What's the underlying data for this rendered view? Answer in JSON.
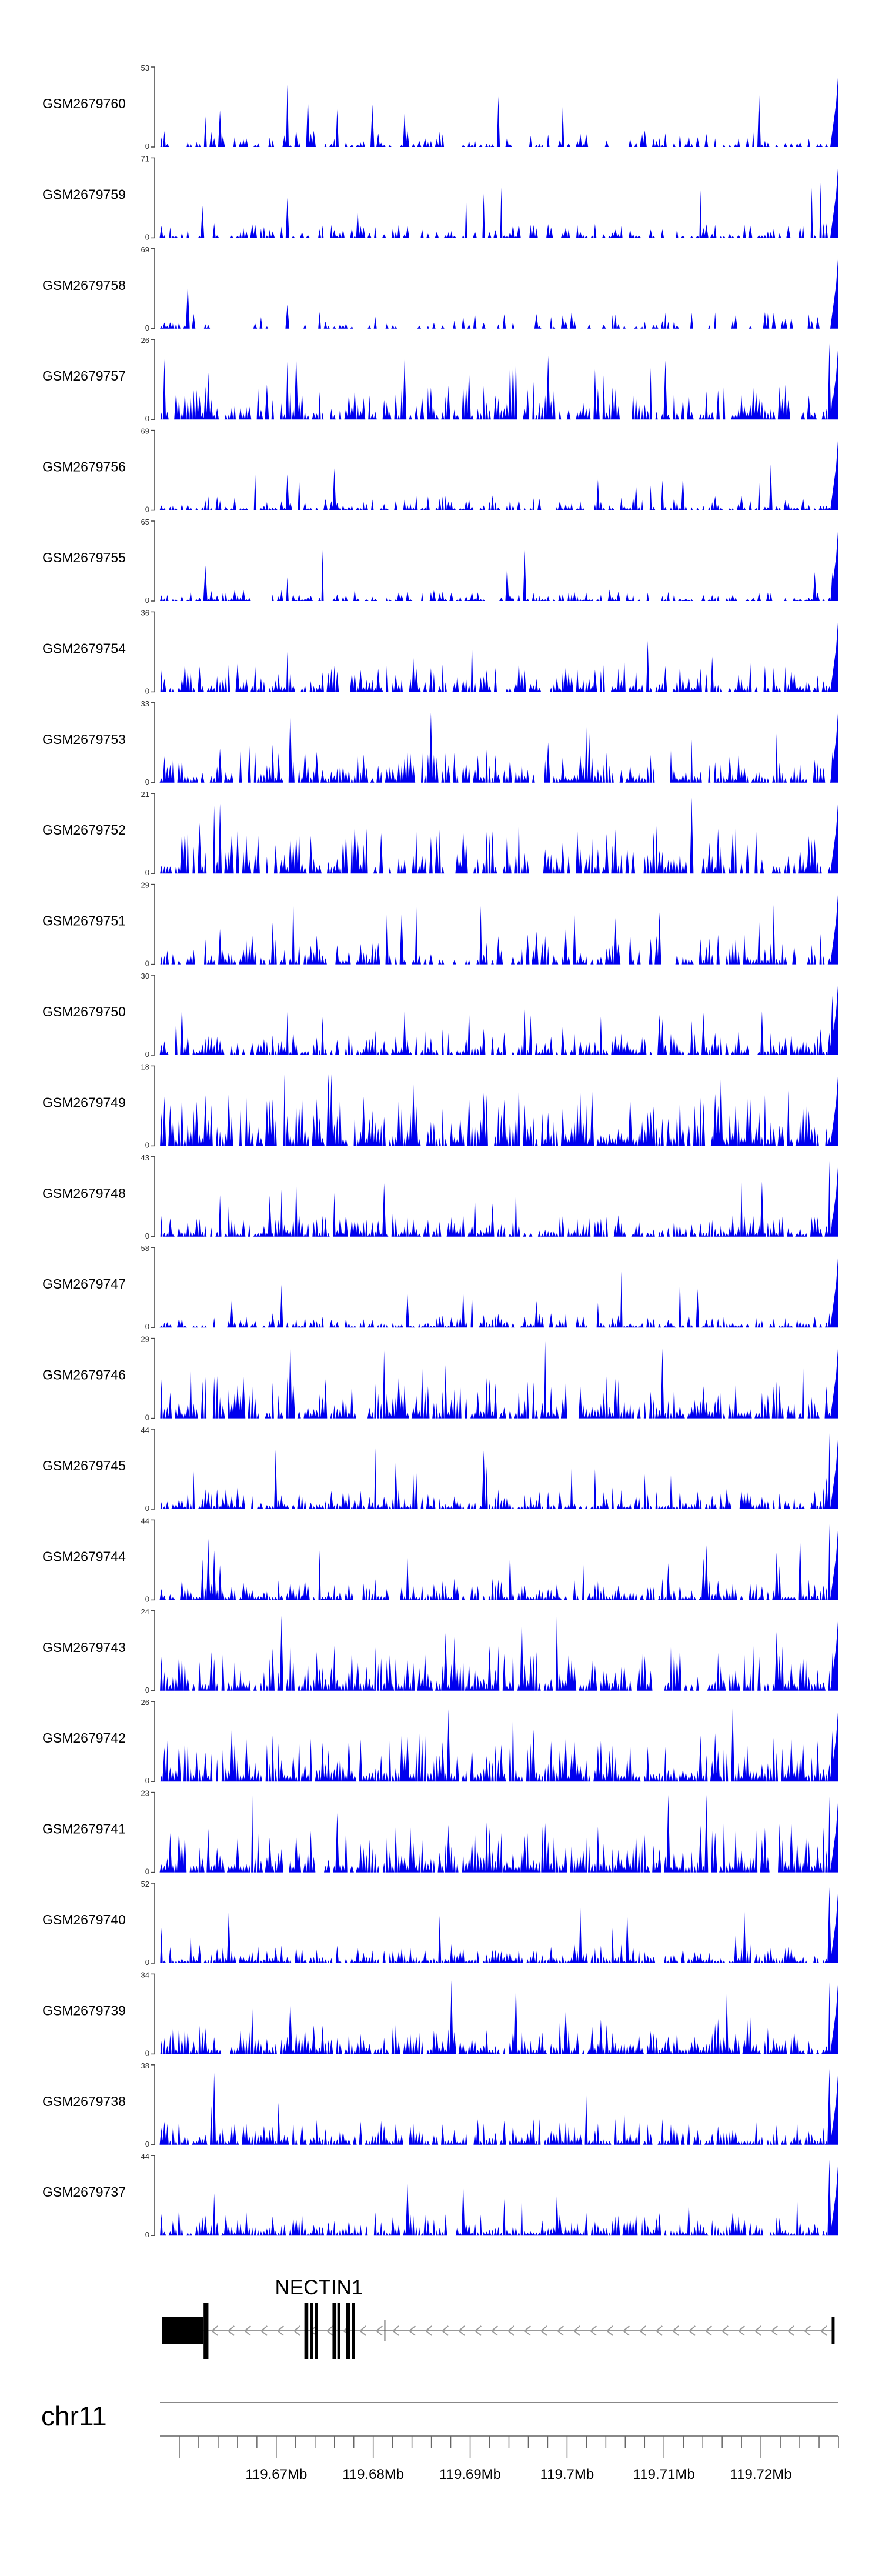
{
  "colors": {
    "signal": "#0000ee",
    "axis": "#444444",
    "gene": "#000000",
    "intron": "#999999"
  },
  "chart_data": {
    "type": "area",
    "chromosome": "chr11",
    "xlim": [
      119658000,
      119728000
    ],
    "x_ticks": [
      {
        "value": 119670000,
        "label": "119.67Mb"
      },
      {
        "value": 119680000,
        "label": "119.68Mb"
      },
      {
        "value": 119690000,
        "label": "119.69Mb"
      },
      {
        "value": 119700000,
        "label": "119.7Mb"
      },
      {
        "value": 119710000,
        "label": "119.71Mb"
      },
      {
        "value": 119720000,
        "label": "119.72Mb"
      }
    ],
    "tracks": [
      {
        "name": "GSM2679760",
        "ymax": "53",
        "ymin": "0",
        "seed": 7601,
        "density": 0.45,
        "base": 0.14,
        "spikes": [
          [
            0.185,
            0.78
          ],
          [
            0.065,
            0.38
          ],
          [
            0.085,
            0.28
          ]
        ]
      },
      {
        "name": "GSM2679759",
        "ymax": "71",
        "ymin": "0",
        "seed": 7592,
        "density": 0.6,
        "base": 0.12,
        "spikes": [
          [
            0.185,
            0.5
          ],
          [
            0.29,
            0.35
          ]
        ]
      },
      {
        "name": "GSM2679758",
        "ymax": "69",
        "ymin": "0",
        "seed": 7583,
        "density": 0.35,
        "base": 0.14,
        "spikes": [
          [
            0.185,
            0.3
          ]
        ]
      },
      {
        "name": "GSM2679757",
        "ymax": "26",
        "ymin": "0",
        "seed": 7574,
        "density": 0.7,
        "base": 0.3,
        "spikes": [
          [
            0.185,
            0.72
          ],
          [
            0.36,
            0.75
          ],
          [
            0.655,
            0.55
          ],
          [
            0.99,
            0.95
          ]
        ]
      },
      {
        "name": "GSM2679756",
        "ymax": "69",
        "ymin": "0",
        "seed": 7565,
        "density": 0.65,
        "base": 0.13,
        "spikes": [
          [
            0.185,
            0.45
          ]
        ]
      },
      {
        "name": "GSM2679755",
        "ymax": "65",
        "ymin": "0",
        "seed": 7556,
        "density": 0.6,
        "base": 0.1,
        "spikes": [
          [
            0.185,
            0.3
          ]
        ]
      },
      {
        "name": "GSM2679754",
        "ymax": "36",
        "ymin": "0",
        "seed": 7547,
        "density": 0.75,
        "base": 0.25,
        "spikes": [
          [
            0.185,
            0.5
          ]
        ]
      },
      {
        "name": "GSM2679753",
        "ymax": "33",
        "ymin": "0",
        "seed": 7538,
        "density": 0.8,
        "base": 0.28,
        "spikes": [
          [
            0.19,
            0.9
          ],
          [
            0.63,
            0.7
          ]
        ]
      },
      {
        "name": "GSM2679752",
        "ymax": "21",
        "ymin": "0",
        "seed": 7529,
        "density": 0.7,
        "base": 0.4,
        "spikes": [
          [
            0.785,
            0.95
          ],
          [
            0.04,
            0.6
          ]
        ]
      },
      {
        "name": "GSM2679751",
        "ymax": "29",
        "ymin": "0",
        "seed": 7520,
        "density": 0.6,
        "base": 0.26,
        "spikes": [
          [
            0.195,
            0.85
          ],
          [
            0.6,
            0.45
          ],
          [
            0.885,
            0.55
          ]
        ]
      },
      {
        "name": "GSM2679750",
        "ymax": "30",
        "ymin": "0",
        "seed": 7511,
        "density": 0.8,
        "base": 0.22,
        "spikes": [
          [
            0.03,
            0.62
          ],
          [
            0.36,
            0.55
          ]
        ]
      },
      {
        "name": "GSM2679749",
        "ymax": "18",
        "ymin": "0",
        "seed": 7502,
        "density": 0.85,
        "base": 0.45,
        "spikes": [
          [
            0.25,
            0.9
          ],
          [
            0.595,
            0.48
          ]
        ]
      },
      {
        "name": "GSM2679748",
        "ymax": "43",
        "ymin": "0",
        "seed": 7493,
        "density": 0.8,
        "base": 0.2,
        "spikes": [
          [
            0.1,
            0.4
          ],
          [
            0.99,
            0.95
          ]
        ]
      },
      {
        "name": "GSM2679747",
        "ymax": "58",
        "ymin": "0",
        "seed": 7484,
        "density": 0.75,
        "base": 0.12,
        "spikes": [
          [
            0.105,
            0.35
          ]
        ]
      },
      {
        "name": "GSM2679746",
        "ymax": "29",
        "ymin": "0",
        "seed": 7475,
        "density": 0.85,
        "base": 0.35,
        "spikes": [
          [
            0.19,
            0.95
          ],
          [
            0.33,
            0.85
          ]
        ]
      },
      {
        "name": "GSM2679745",
        "ymax": "44",
        "ymin": "0",
        "seed": 7466,
        "density": 0.8,
        "base": 0.18,
        "spikes": [
          [
            0.645,
            0.5
          ],
          [
            0.99,
            0.95
          ]
        ]
      },
      {
        "name": "GSM2679744",
        "ymax": "44",
        "ymin": "0",
        "seed": 7457,
        "density": 0.85,
        "base": 0.18,
        "spikes": [
          [
            0.08,
            0.62
          ],
          [
            0.99,
            0.95
          ]
        ]
      },
      {
        "name": "GSM2679743",
        "ymax": "24",
        "ymin": "0",
        "seed": 7448,
        "density": 0.85,
        "base": 0.38,
        "spikes": [
          [
            0.42,
            0.72
          ],
          [
            0.755,
            0.72
          ]
        ]
      },
      {
        "name": "GSM2679742",
        "ymax": "26",
        "ymin": "0",
        "seed": 7439,
        "density": 0.9,
        "base": 0.38,
        "spikes": [
          [
            0.52,
            0.95
          ]
        ]
      },
      {
        "name": "GSM2679741",
        "ymax": "23",
        "ymin": "0",
        "seed": 7430,
        "density": 0.9,
        "base": 0.4,
        "spikes": [
          [
            0.99,
            0.95
          ]
        ]
      },
      {
        "name": "GSM2679740",
        "ymax": "52",
        "ymin": "0",
        "seed": 7421,
        "density": 0.9,
        "base": 0.16,
        "spikes": [
          [
            0.99,
            0.95
          ]
        ]
      },
      {
        "name": "GSM2679739",
        "ymax": "34",
        "ymin": "0",
        "seed": 7412,
        "density": 0.9,
        "base": 0.26,
        "spikes": [
          [
            0.84,
            0.78
          ],
          [
            0.99,
            0.9
          ]
        ]
      },
      {
        "name": "GSM2679738",
        "ymax": "38",
        "ymin": "0",
        "seed": 7403,
        "density": 0.9,
        "base": 0.22,
        "spikes": [
          [
            0.08,
            0.9
          ],
          [
            0.99,
            0.95
          ]
        ]
      },
      {
        "name": "GSM2679737",
        "ymax": "44",
        "ymin": "0",
        "seed": 7394,
        "density": 0.9,
        "base": 0.2,
        "spikes": [
          [
            0.99,
            0.95
          ]
        ]
      }
    ],
    "gene": {
      "name": "NECTIN1",
      "strand": "-",
      "start": 119658200,
      "end": 119727600,
      "exons": [
        [
          119658200,
          119662500
        ],
        [
          119662500,
          119663000
        ],
        [
          119672900,
          119673300
        ],
        [
          119673500,
          119673800
        ],
        [
          119674000,
          119674300
        ],
        [
          119675800,
          119676200
        ],
        [
          119676300,
          119676600
        ],
        [
          119677200,
          119677600
        ],
        [
          119677800,
          119678100
        ],
        [
          119727300,
          119727600
        ]
      ]
    }
  }
}
